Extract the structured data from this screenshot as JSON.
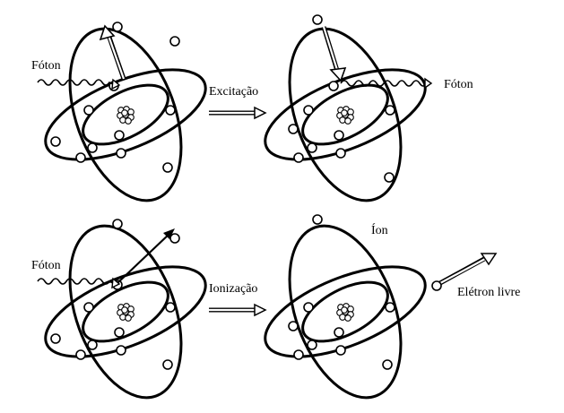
{
  "labels": {
    "photon_in_top": "Fóton",
    "excitation": "Excitação",
    "photon_out": "Fóton",
    "photon_in_bottom": "Fóton",
    "ionization": "Ionização",
    "ion": "Íon",
    "free_electron": "Elétron livre"
  },
  "colors": {
    "stroke": "#000000",
    "background": "#ffffff"
  }
}
